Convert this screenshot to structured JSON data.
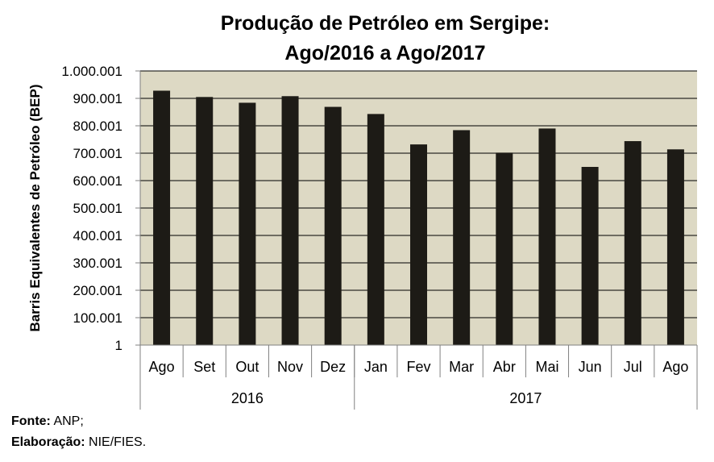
{
  "chart_data": {
    "type": "bar",
    "title_lines": [
      "Produção de Petróleo em Sergipe:",
      "Ago/2016 a Ago/2017"
    ],
    "ylabel": "Barris Equivalentes de Petróleo (BEP)",
    "xlabel": "",
    "categories": [
      "Ago",
      "Set",
      "Out",
      "Nov",
      "Dez",
      "Jan",
      "Fev",
      "Mar",
      "Abr",
      "Mai",
      "Jun",
      "Jul",
      "Ago"
    ],
    "year_groups": [
      {
        "label": "2016",
        "count": 5
      },
      {
        "label": "2017",
        "count": 8
      }
    ],
    "values": [
      928001,
      905001,
      884001,
      908001,
      869001,
      843001,
      732001,
      784001,
      702001,
      790001,
      650001,
      744001,
      714001
    ],
    "ylim": [
      1,
      1000001
    ],
    "yticks": [
      1,
      100001,
      200001,
      300001,
      400001,
      500001,
      600001,
      700001,
      800001,
      900001,
      1000001
    ],
    "ytick_labels": [
      "1",
      "100.001",
      "200.001",
      "300.001",
      "400.001",
      "500.001",
      "600.001",
      "700.001",
      "800.001",
      "900.001",
      "1.000.001"
    ],
    "grid": true,
    "legend": "none",
    "colors": {
      "plot_bg": "#ddd9c4",
      "bar": "#1d1b16",
      "grid": "#000000",
      "axis": "#808080"
    }
  },
  "footer": {
    "source_label": "Fonte:",
    "source_value": " ANP;",
    "credit_label": "Elaboração:",
    "credit_value": " NIE/FIES."
  }
}
